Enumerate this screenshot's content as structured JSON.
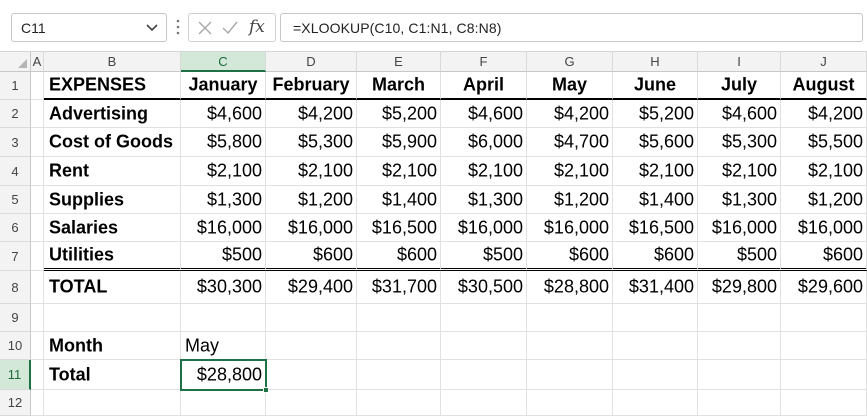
{
  "formula_bar": {
    "name_box": "C11",
    "name_box_caret_icon": "chevron-down-icon",
    "fx_label": "fx",
    "formula": "=XLOOKUP(C10, C1:N1, C8:N8)"
  },
  "columns": [
    "A",
    "B",
    "C",
    "D",
    "E",
    "F",
    "G",
    "H",
    "I",
    "J"
  ],
  "rows": [
    "1",
    "2",
    "3",
    "4",
    "5",
    "6",
    "7",
    "8",
    "9",
    "10",
    "11",
    "12"
  ],
  "header_row": {
    "label": "EXPENSES",
    "months": [
      "January",
      "February",
      "March",
      "April",
      "May",
      "June",
      "July",
      "August"
    ]
  },
  "data_rows": [
    {
      "label": "Advertising",
      "values": [
        "$4,600",
        "$4,200",
        "$5,200",
        "$4,600",
        "$4,200",
        "$5,200",
        "$4,600",
        "$4,200"
      ]
    },
    {
      "label": "Cost of Goods",
      "values": [
        "$5,800",
        "$5,300",
        "$5,900",
        "$6,000",
        "$4,700",
        "$5,600",
        "$5,300",
        "$5,500"
      ]
    },
    {
      "label": "Rent",
      "values": [
        "$2,100",
        "$2,100",
        "$2,100",
        "$2,100",
        "$2,100",
        "$2,100",
        "$2,100",
        "$2,100"
      ]
    },
    {
      "label": "Supplies",
      "values": [
        "$1,300",
        "$1,200",
        "$1,400",
        "$1,300",
        "$1,200",
        "$1,400",
        "$1,300",
        "$1,200"
      ]
    },
    {
      "label": "Salaries",
      "values": [
        "$16,000",
        "$16,000",
        "$16,500",
        "$16,000",
        "$16,000",
        "$16,500",
        "$16,000",
        "$16,000"
      ]
    },
    {
      "label": "Utilities",
      "values": [
        "$500",
        "$600",
        "$600",
        "$500",
        "$600",
        "$600",
        "$500",
        "$600"
      ]
    }
  ],
  "total_row": {
    "label": "TOTAL",
    "values": [
      "$30,300",
      "$29,400",
      "$31,700",
      "$30,500",
      "$28,800",
      "$31,400",
      "$29,800",
      "$29,600"
    ]
  },
  "lookup": {
    "month_label": "Month",
    "month_value": "May",
    "total_label": "Total",
    "total_value": "$28,800"
  },
  "colors": {
    "selection_green": "#1e7145",
    "header_fill": "#f3f3f3",
    "selected_header_fill": "#d3e8d9"
  }
}
